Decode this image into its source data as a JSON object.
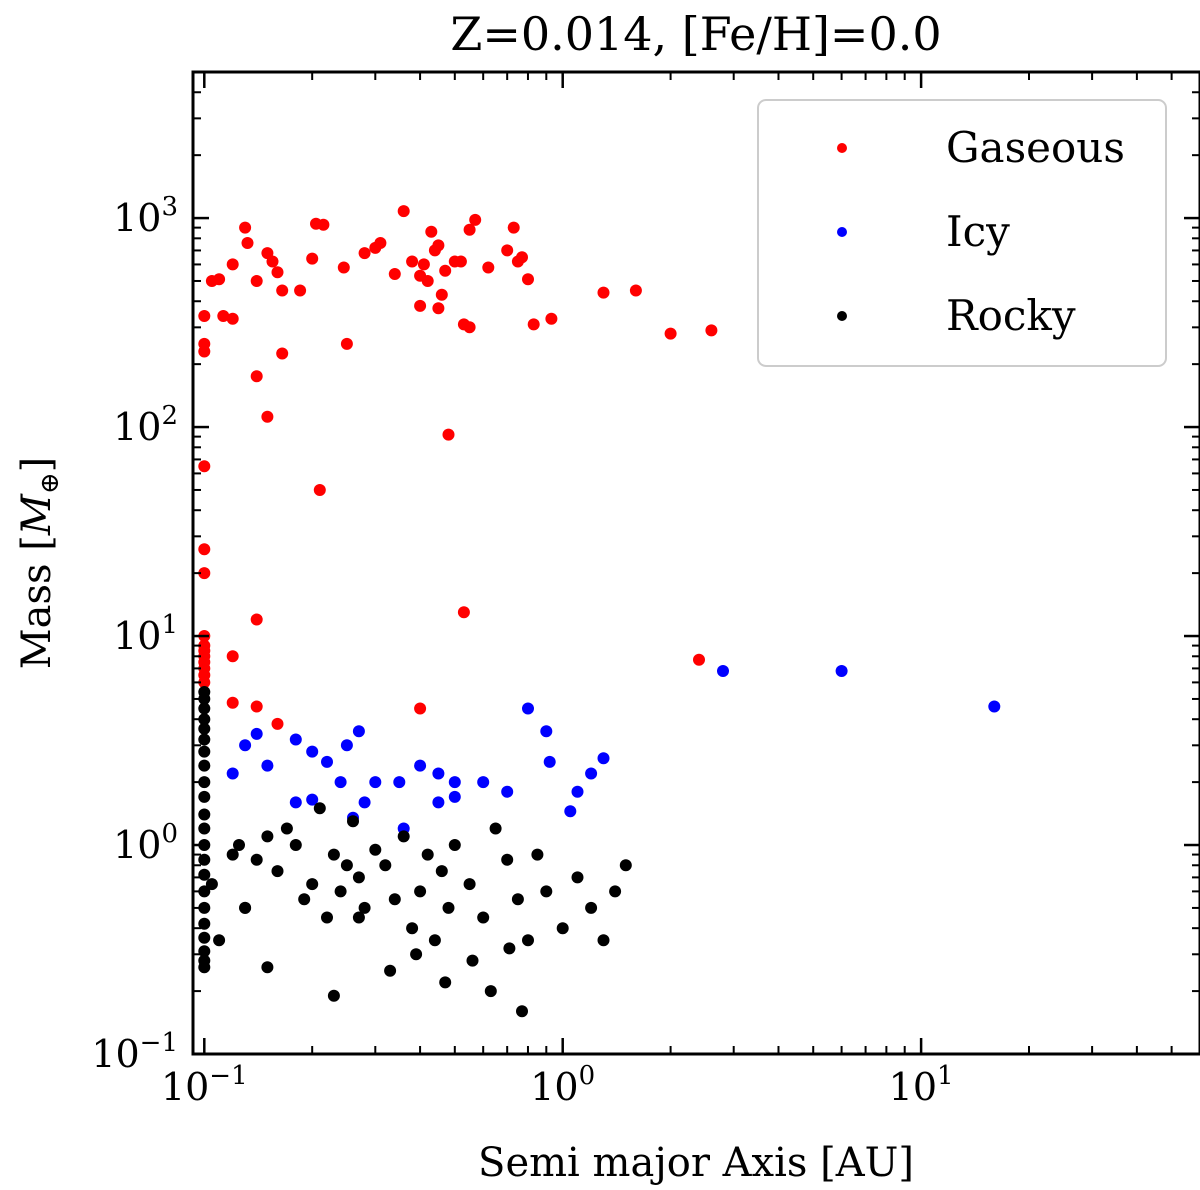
{
  "chart_data": {
    "type": "scatter",
    "title": "Z=0.014, [Fe/H]=0.0",
    "xlabel": "Semi major Axis [AU]",
    "ylabel_main": "Mass [",
    "ylabel_symbol": "M",
    "ylabel_subscript": "⊕",
    "ylabel_close": "]",
    "xscale": "log",
    "yscale": "log",
    "xlim": [
      0.093,
      60
    ],
    "ylim": [
      0.1,
      5000
    ],
    "grid": false,
    "legend_position": "top-right",
    "x_ticks": [
      {
        "value": 0.1,
        "base": "10",
        "exp": "−1"
      },
      {
        "value": 1,
        "base": "10",
        "exp": "0"
      },
      {
        "value": 10,
        "base": "10",
        "exp": "1"
      }
    ],
    "y_ticks": [
      {
        "value": 0.1,
        "base": "10",
        "exp": "−1"
      },
      {
        "value": 1,
        "base": "10",
        "exp": "0"
      },
      {
        "value": 10,
        "base": "10",
        "exp": "1"
      },
      {
        "value": 100,
        "base": "10",
        "exp": "2"
      },
      {
        "value": 1000,
        "base": "10",
        "exp": "3"
      }
    ],
    "series": [
      {
        "name": "Gaseous",
        "color": "#ff0000",
        "points": [
          [
            0.1,
            340
          ],
          [
            0.1,
            250
          ],
          [
            0.1,
            230
          ],
          [
            0.1,
            65
          ],
          [
            0.1,
            26
          ],
          [
            0.1,
            20
          ],
          [
            0.1,
            10
          ],
          [
            0.1,
            9
          ],
          [
            0.1,
            8.5
          ],
          [
            0.1,
            8
          ],
          [
            0.1,
            7.5
          ],
          [
            0.1,
            7
          ],
          [
            0.1,
            6.5
          ],
          [
            0.1,
            6
          ],
          [
            0.105,
            500
          ],
          [
            0.11,
            510
          ],
          [
            0.113,
            340
          ],
          [
            0.12,
            600
          ],
          [
            0.13,
            900
          ],
          [
            0.132,
            760
          ],
          [
            0.14,
            500
          ],
          [
            0.15,
            680
          ],
          [
            0.155,
            620
          ],
          [
            0.16,
            550
          ],
          [
            0.165,
            450
          ],
          [
            0.185,
            450
          ],
          [
            0.2,
            640
          ],
          [
            0.205,
            940
          ],
          [
            0.215,
            930
          ],
          [
            0.245,
            580
          ],
          [
            0.28,
            680
          ],
          [
            0.3,
            720
          ],
          [
            0.31,
            760
          ],
          [
            0.34,
            540
          ],
          [
            0.36,
            1080
          ],
          [
            0.38,
            620
          ],
          [
            0.4,
            530
          ],
          [
            0.41,
            600
          ],
          [
            0.42,
            500
          ],
          [
            0.43,
            860
          ],
          [
            0.44,
            700
          ],
          [
            0.45,
            740
          ],
          [
            0.47,
            560
          ],
          [
            0.5,
            620
          ],
          [
            0.52,
            620
          ],
          [
            0.55,
            880
          ],
          [
            0.57,
            980
          ],
          [
            0.62,
            580
          ],
          [
            0.7,
            700
          ],
          [
            0.73,
            900
          ],
          [
            0.75,
            620
          ],
          [
            0.77,
            650
          ],
          [
            0.8,
            510
          ],
          [
            0.83,
            310
          ],
          [
            0.55,
            300
          ],
          [
            0.53,
            310
          ],
          [
            0.46,
            430
          ],
          [
            0.4,
            380
          ],
          [
            0.25,
            250
          ],
          [
            0.45,
            370
          ],
          [
            0.93,
            330
          ],
          [
            1.3,
            440
          ],
          [
            1.6,
            450
          ],
          [
            2.0,
            280
          ],
          [
            2.6,
            290
          ],
          [
            0.12,
            330
          ],
          [
            0.14,
            175
          ],
          [
            0.165,
            225
          ],
          [
            0.15,
            112
          ],
          [
            0.48,
            92
          ],
          [
            0.21,
            50
          ],
          [
            0.53,
            13
          ],
          [
            0.14,
            12
          ],
          [
            0.12,
            8
          ],
          [
            0.12,
            4.8
          ],
          [
            0.14,
            4.6
          ],
          [
            0.16,
            3.8
          ],
          [
            0.4,
            4.5
          ],
          [
            2.4,
            7.7
          ]
        ]
      },
      {
        "name": "Icy",
        "color": "#0000ff",
        "points": [
          [
            0.13,
            3.0
          ],
          [
            0.15,
            2.4
          ],
          [
            0.14,
            3.4
          ],
          [
            0.12,
            2.2
          ],
          [
            0.18,
            3.2
          ],
          [
            0.2,
            2.8
          ],
          [
            0.22,
            2.5
          ],
          [
            0.25,
            3.0
          ],
          [
            0.27,
            3.5
          ],
          [
            0.24,
            2.0
          ],
          [
            0.3,
            2.0
          ],
          [
            0.35,
            2.0
          ],
          [
            0.4,
            2.4
          ],
          [
            0.45,
            2.2
          ],
          [
            0.5,
            2.0
          ],
          [
            0.6,
            2.0
          ],
          [
            0.8,
            4.5
          ],
          [
            0.9,
            3.5
          ],
          [
            0.28,
            1.6
          ],
          [
            0.5,
            1.7
          ],
          [
            0.7,
            1.8
          ],
          [
            0.92,
            2.5
          ],
          [
            2.8,
            6.8
          ],
          [
            6.0,
            6.8
          ],
          [
            16,
            4.6
          ],
          [
            0.18,
            1.6
          ],
          [
            0.2,
            1.65
          ],
          [
            0.26,
            1.35
          ],
          [
            0.45,
            1.6
          ],
          [
            0.36,
            1.2
          ],
          [
            1.05,
            1.45
          ],
          [
            1.1,
            1.8
          ],
          [
            1.2,
            2.2
          ],
          [
            1.3,
            2.6
          ]
        ]
      },
      {
        "name": "Rocky",
        "color": "#000000",
        "points": [
          [
            0.1,
            5.4
          ],
          [
            0.1,
            5.0
          ],
          [
            0.1,
            4.5
          ],
          [
            0.1,
            4.0
          ],
          [
            0.1,
            3.6
          ],
          [
            0.1,
            3.2
          ],
          [
            0.1,
            2.8
          ],
          [
            0.1,
            2.4
          ],
          [
            0.1,
            2.0
          ],
          [
            0.1,
            1.7
          ],
          [
            0.1,
            1.4
          ],
          [
            0.1,
            1.2
          ],
          [
            0.1,
            1.0
          ],
          [
            0.1,
            0.85
          ],
          [
            0.1,
            0.72
          ],
          [
            0.1,
            0.6
          ],
          [
            0.1,
            0.5
          ],
          [
            0.1,
            0.42
          ],
          [
            0.1,
            0.36
          ],
          [
            0.1,
            0.31
          ],
          [
            0.1,
            0.28
          ],
          [
            0.1,
            0.26
          ],
          [
            0.105,
            0.65
          ],
          [
            0.11,
            0.35
          ],
          [
            0.12,
            0.9
          ],
          [
            0.125,
            1.0
          ],
          [
            0.13,
            0.5
          ],
          [
            0.14,
            0.85
          ],
          [
            0.15,
            1.1
          ],
          [
            0.16,
            0.75
          ],
          [
            0.17,
            1.2
          ],
          [
            0.18,
            1.0
          ],
          [
            0.19,
            0.55
          ],
          [
            0.2,
            0.65
          ],
          [
            0.21,
            1.5
          ],
          [
            0.22,
            0.45
          ],
          [
            0.23,
            0.9
          ],
          [
            0.24,
            0.6
          ],
          [
            0.25,
            0.8
          ],
          [
            0.26,
            1.3
          ],
          [
            0.27,
            0.7
          ],
          [
            0.28,
            0.5
          ],
          [
            0.3,
            0.95
          ],
          [
            0.32,
            0.8
          ],
          [
            0.34,
            0.55
          ],
          [
            0.36,
            1.1
          ],
          [
            0.38,
            0.4
          ],
          [
            0.4,
            0.6
          ],
          [
            0.42,
            0.9
          ],
          [
            0.44,
            0.35
          ],
          [
            0.46,
            0.75
          ],
          [
            0.48,
            0.5
          ],
          [
            0.5,
            1.0
          ],
          [
            0.55,
            0.65
          ],
          [
            0.6,
            0.45
          ],
          [
            0.65,
            1.2
          ],
          [
            0.7,
            0.85
          ],
          [
            0.75,
            0.55
          ],
          [
            0.8,
            0.35
          ],
          [
            0.85,
            0.9
          ],
          [
            0.9,
            0.6
          ],
          [
            1.0,
            0.4
          ],
          [
            1.1,
            0.7
          ],
          [
            1.2,
            0.5
          ],
          [
            1.3,
            0.35
          ],
          [
            1.4,
            0.6
          ],
          [
            1.5,
            0.8
          ],
          [
            0.15,
            0.26
          ],
          [
            0.23,
            0.19
          ],
          [
            0.13,
            0.5
          ],
          [
            0.27,
            0.45
          ],
          [
            0.33,
            0.25
          ],
          [
            0.39,
            0.3
          ],
          [
            0.47,
            0.22
          ],
          [
            0.56,
            0.28
          ],
          [
            0.63,
            0.2
          ],
          [
            0.71,
            0.32
          ],
          [
            0.77,
            0.16
          ]
        ]
      }
    ]
  }
}
